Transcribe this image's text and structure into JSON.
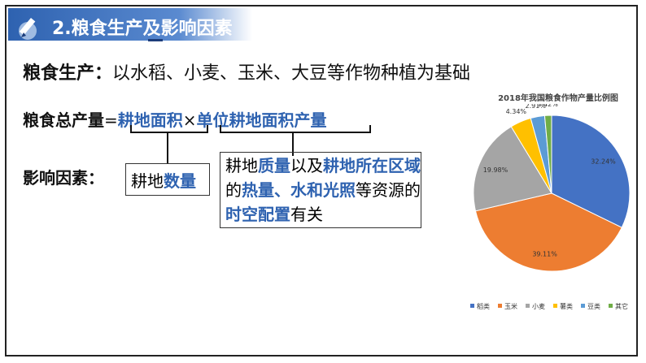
{
  "slide": {
    "title": "2.粮食生产及影响因素",
    "line1_label": "粮食生产：",
    "line1_text": "以水稻、小麦、玉米、大豆等作物种植为基础",
    "formula": {
      "lhs": "粮食总产量",
      "equals": "=",
      "factor1": "耕地面积",
      "times": "×",
      "factor2": "单位耕地面积产量"
    },
    "influence_label": "影响因素：",
    "box1": {
      "part1": "耕地",
      "part2": "数量"
    },
    "box2": {
      "t1": "耕地",
      "t2": "质量",
      "t3": "以及",
      "t4": "耕地所在区域",
      "t5": "的",
      "t6": "热量",
      "t7": "、",
      "t8": "水",
      "t9": "和",
      "t10": "光照",
      "t11": "等资源的",
      "t12": "时空配置",
      "t13": "有关"
    }
  },
  "chart_data": {
    "type": "pie",
    "title": "2018年我国粮食作物产量比例图",
    "categories": [
      "稻类",
      "玉米",
      "小麦",
      "薯类",
      "豆类",
      "其它"
    ],
    "values": [
      32.24,
      39.11,
      19.98,
      4.34,
      2.91,
      1.42
    ],
    "labels": [
      "32.24%",
      "39.11%",
      "19.98%",
      "4.34%",
      "2.91%",
      "1.42%"
    ],
    "colors": [
      "#4472c4",
      "#ed7d31",
      "#a5a5a5",
      "#ffc000",
      "#5b9bd5",
      "#70ad47"
    ],
    "legend_position": "bottom"
  },
  "colors": {
    "accent": "#2e62b0",
    "text": "#111111"
  }
}
